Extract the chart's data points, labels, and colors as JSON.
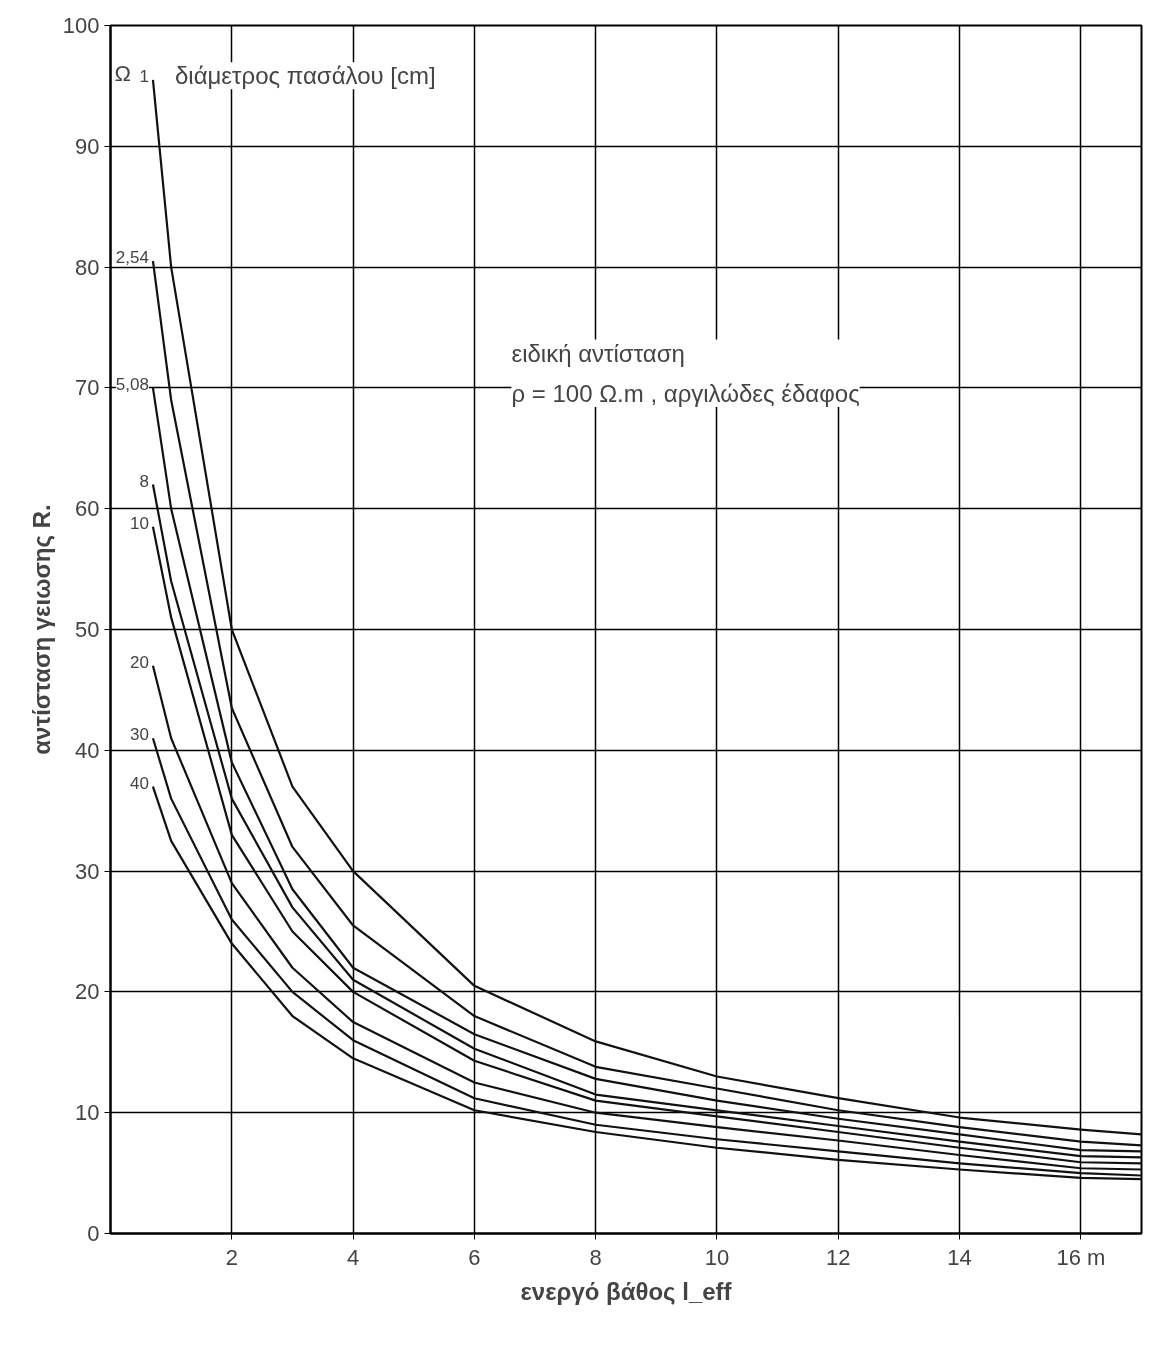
{
  "chart_data": {
    "type": "line",
    "xlabel": "ενεργό βάθος l_eff",
    "ylabel": "αντίσταση γειωσης R.",
    "legend_title": "διάμετρος πασάλου [cm]",
    "annotations": [
      "Ω",
      "ειδική αντίσταση\nρ = 100 Ω.m , αργιλώδες έδαφος"
    ],
    "x": [
      0.7,
      1,
      2,
      3,
      4,
      6,
      8,
      10,
      12,
      14,
      16,
      17
    ],
    "series": [
      {
        "name": "1",
        "color": "#111111",
        "values": [
          95.5,
          80,
          50,
          37,
          30,
          20.5,
          15.9,
          13,
          11.2,
          9.6,
          8.6,
          8.2
        ]
      },
      {
        "name": "2,54",
        "color": "#111111",
        "values": [
          80.5,
          69,
          43.5,
          32,
          25.5,
          18,
          13.8,
          12,
          10.2,
          8.8,
          7.6,
          7.3
        ]
      },
      {
        "name": "5,08",
        "color": "#111111",
        "values": [
          70,
          60,
          39,
          28.5,
          22,
          16.5,
          12.8,
          11,
          9.5,
          8.2,
          6.9,
          6.8
        ]
      },
      {
        "name": "8",
        "color": "#111111",
        "values": [
          62,
          54,
          36,
          27,
          21,
          15.3,
          11.5,
          10.2,
          8.9,
          7.6,
          6.4,
          6.3
        ]
      },
      {
        "name": "10",
        "color": "#111111",
        "values": [
          58.5,
          51,
          33,
          25,
          20,
          14.3,
          11,
          9.7,
          8.4,
          7.1,
          5.9,
          5.8
        ]
      },
      {
        "name": "20",
        "color": "#111111",
        "values": [
          47,
          41,
          29,
          22,
          17.5,
          12.5,
          10,
          8.8,
          7.7,
          6.5,
          5.4,
          5.3
        ]
      },
      {
        "name": "30",
        "color": "#111111",
        "values": [
          41,
          36,
          26,
          20,
          16,
          11.2,
          9,
          7.8,
          6.8,
          5.8,
          5,
          4.8
        ]
      },
      {
        "name": "40",
        "color": "#111111",
        "values": [
          37,
          32.5,
          24,
          18,
          14.5,
          10.2,
          8.4,
          7.1,
          6.1,
          5.3,
          4.6,
          4.5
        ]
      }
    ],
    "xlim": [
      0,
      17
    ],
    "ylim": [
      0,
      100
    ],
    "xticks": [
      2,
      4,
      6,
      8,
      10,
      12,
      14,
      {
        "value": 16,
        "label": "16 m"
      }
    ],
    "yticks": [
      0,
      10,
      20,
      30,
      40,
      50,
      60,
      70,
      80,
      90,
      100
    ],
    "grid": true,
    "marker": "none",
    "line_style": "solid"
  }
}
